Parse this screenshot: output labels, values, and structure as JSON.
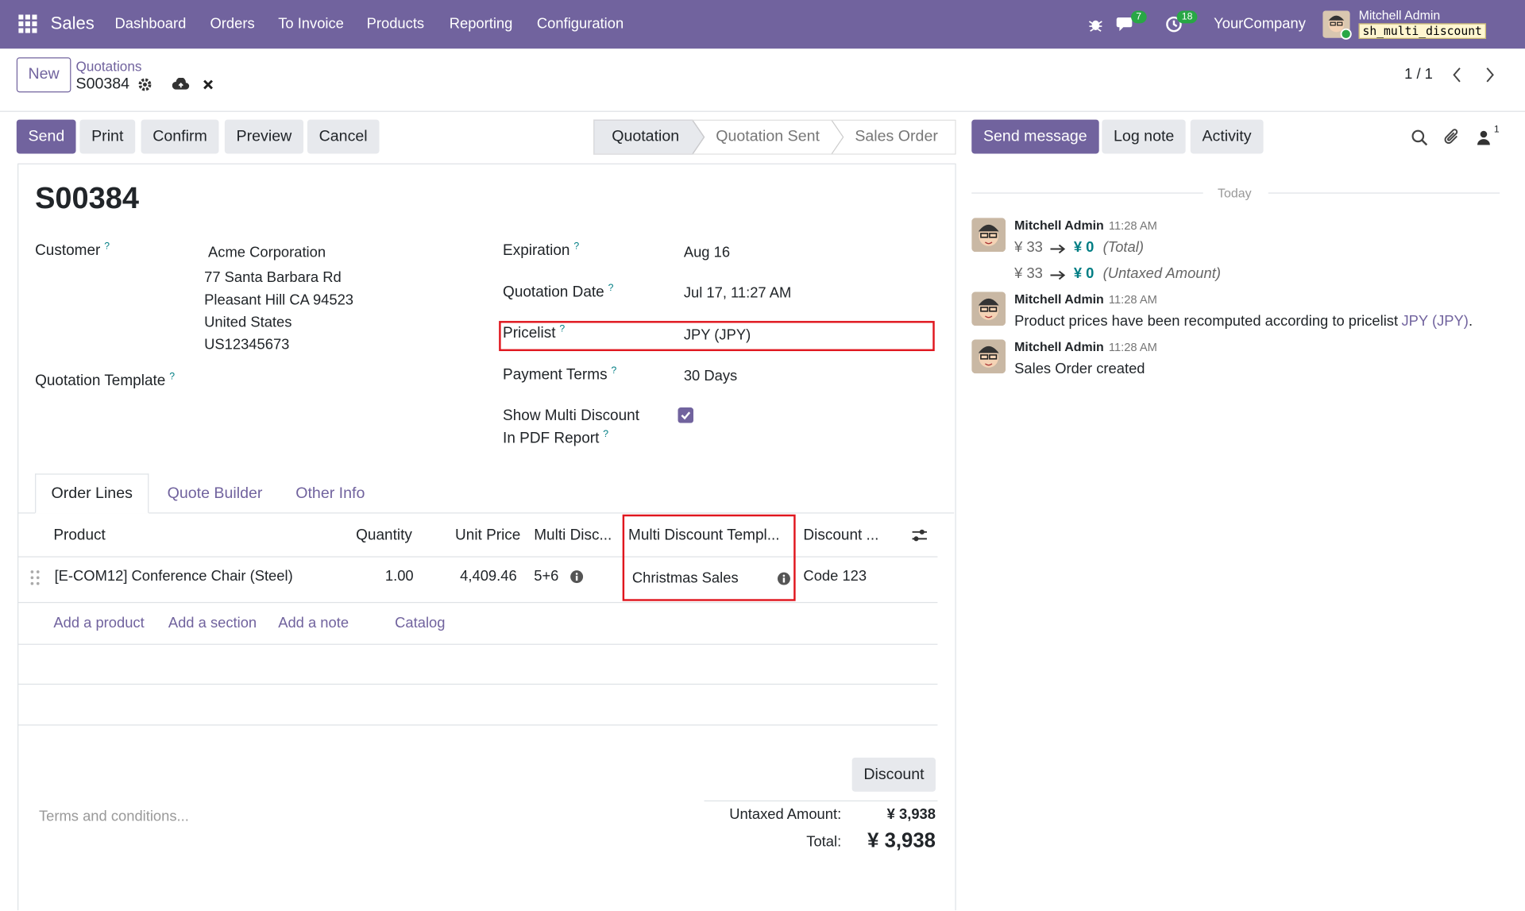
{
  "navbar": {
    "app": "Sales",
    "menu": [
      "Dashboard",
      "Orders",
      "To Invoice",
      "Products",
      "Reporting",
      "Configuration"
    ],
    "messages_count": "7",
    "activities_count": "18",
    "company": "YourCompany",
    "user": "Mitchell Admin",
    "database": "sh_multi_discount"
  },
  "breadcrumb": {
    "new_button": "New",
    "parent": "Quotations",
    "current": "S00384",
    "pager": "1 / 1"
  },
  "actions": [
    "Send",
    "Print",
    "Confirm",
    "Preview",
    "Cancel"
  ],
  "status_bar": [
    "Quotation",
    "Quotation Sent",
    "Sales Order"
  ],
  "help_marker": "?",
  "form": {
    "name": "S00384",
    "customer_label": "Customer",
    "customer_lines": [
      "Acme Corporation",
      "77 Santa Barbara Rd",
      "Pleasant Hill CA 94523",
      "United States",
      "US12345673"
    ],
    "template_label": "Quotation Template",
    "fields": [
      {
        "label": "Expiration",
        "value": "Aug 16"
      },
      {
        "label": "Quotation Date",
        "value": "Jul 17, 11:27 AM"
      },
      {
        "label": "Pricelist",
        "value": "JPY (JPY)"
      },
      {
        "label": "Payment Terms",
        "value": "30 Days"
      }
    ],
    "multi_discount_label": [
      "Show Multi Discount",
      "In PDF Report"
    ]
  },
  "tabs": [
    "Order Lines",
    "Quote Builder",
    "Other Info"
  ],
  "table": {
    "columns": [
      "Product",
      "Quantity",
      "Unit Price",
      "Multi Disc...",
      "Multi Discount Templ...",
      "Discount ..."
    ],
    "rows": [
      [
        "[E-COM12] Conference Chair (Steel)",
        "1.00",
        "4,409.46",
        "5+6",
        "Christmas Sales",
        "Code 123"
      ]
    ],
    "add_links": [
      "Add a product",
      "Add a section",
      "Add a note",
      "Catalog"
    ]
  },
  "discount_button": "Discount",
  "terms_placeholder": "Terms and conditions...",
  "totals": [
    {
      "label": "Untaxed Amount:",
      "value": "¥ 3,938"
    },
    {
      "label": "Total:",
      "value": "¥ 3,938"
    }
  ],
  "chatter": {
    "buttons": [
      "Send message",
      "Log note",
      "Activity"
    ],
    "followers": "1",
    "separator": "Today",
    "messages": [
      {
        "author": "Mitchell Admin",
        "time": "11:28 AM",
        "changes": [
          {
            "old": "¥ 33",
            "new": "¥ 0",
            "field": "(Total)"
          },
          {
            "old": "¥ 33",
            "new": "¥ 0",
            "field": "(Untaxed Amount)"
          }
        ]
      },
      {
        "author": "Mitchell Admin",
        "time": "11:28 AM",
        "body": [
          "Product prices have been recomputed according to pricelist",
          "JPY (JPY)",
          "."
        ]
      },
      {
        "author": "Mitchell Admin",
        "time": "11:28 AM",
        "body": [
          "Sales Order created"
        ]
      }
    ]
  }
}
